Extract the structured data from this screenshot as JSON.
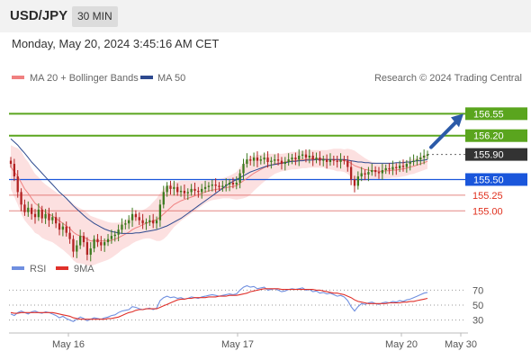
{
  "header": {
    "pair": "USD/JPY",
    "timeframe": "30 MIN",
    "datetime": "Monday, May 20, 2024 3:45:16 AM CET"
  },
  "legend": {
    "ma20_label": "MA 20 + Bollinger Bands",
    "ma50_label": "MA 50",
    "copyright": "Research © 2024 Trading Central",
    "rsi_label": "RSI",
    "rsi_ma_label": "9MA"
  },
  "colors": {
    "green_level": "#5aa51e",
    "blue_level": "#1a56db",
    "red_level": "#d9534f",
    "current": "#333333",
    "ma20": "#f08080",
    "ma50": "#2e4a8f",
    "band_fill": "#fbd5d5",
    "candle_up": "#3c7a1e",
    "candle_down": "#b22222",
    "rsi_line": "#6f8fe0",
    "rsi_ma_line": "#e0302a",
    "arrow": "#2b5aa8"
  },
  "chart_data": [
    {
      "type": "candlestick",
      "title": "USD/JPY 30 MIN",
      "x_ticks": [
        "May 16",
        "May 17",
        "May 20",
        "May 30"
      ],
      "y_range": [
        154.2,
        157.0
      ],
      "levels": [
        {
          "value": 156.55,
          "label": "156.55",
          "kind": "resistance",
          "color": "#5aa51e"
        },
        {
          "value": 156.2,
          "label": "156.20",
          "kind": "resistance",
          "color": "#5aa51e"
        },
        {
          "value": 155.9,
          "label": "155.90",
          "kind": "current",
          "color": "#333333"
        },
        {
          "value": 155.5,
          "label": "155.50",
          "kind": "pivot",
          "color": "#1a56db"
        },
        {
          "value": 155.25,
          "label": "155.25",
          "kind": "support",
          "color": "#d9534f"
        },
        {
          "value": 155.0,
          "label": "155.00",
          "kind": "support",
          "color": "#d9534f"
        }
      ],
      "close": [
        155.75,
        155.55,
        155.3,
        155.1,
        154.98,
        155.05,
        154.95,
        154.9,
        155.02,
        154.88,
        154.95,
        154.85,
        154.9,
        154.8,
        154.7,
        154.75,
        154.65,
        154.55,
        154.35,
        154.45,
        154.6,
        154.5,
        154.3,
        154.4,
        154.55,
        154.5,
        154.45,
        154.5,
        154.55,
        154.6,
        154.62,
        154.7,
        154.78,
        154.8,
        154.85,
        154.95,
        154.9,
        154.85,
        154.8,
        154.82,
        154.85,
        154.8,
        154.85,
        155.1,
        155.3,
        155.4,
        155.35,
        155.38,
        155.3,
        155.32,
        155.28,
        155.3,
        155.35,
        155.32,
        155.3,
        155.35,
        155.38,
        155.4,
        155.42,
        155.4,
        155.38,
        155.4,
        155.42,
        155.45,
        155.42,
        155.45,
        155.6,
        155.75,
        155.82,
        155.8,
        155.85,
        155.8,
        155.82,
        155.85,
        155.78,
        155.8,
        155.82,
        155.8,
        155.75,
        155.78,
        155.82,
        155.85,
        155.82,
        155.88,
        155.9,
        155.85,
        155.88,
        155.82,
        155.85,
        155.8,
        155.82,
        155.78,
        155.82,
        155.8,
        155.78,
        155.82,
        155.8,
        155.7,
        155.5,
        155.4,
        155.55,
        155.6,
        155.58,
        155.62,
        155.65,
        155.62,
        155.6,
        155.65,
        155.68,
        155.66,
        155.7,
        155.68,
        155.72,
        155.7,
        155.75,
        155.78,
        155.8,
        155.82,
        155.85,
        155.88,
        155.9
      ],
      "ma20": [
        155.7,
        155.62,
        155.55,
        155.45,
        155.35,
        155.28,
        155.2,
        155.12,
        155.08,
        155.02,
        154.98,
        154.95,
        154.92,
        154.88,
        154.84,
        154.8,
        154.76,
        154.72,
        154.66,
        154.62,
        154.6,
        154.58,
        154.55,
        154.52,
        154.52,
        154.52,
        154.52,
        154.52,
        154.52,
        154.53,
        154.55,
        154.57,
        154.6,
        154.63,
        154.66,
        154.7,
        154.73,
        154.75,
        154.78,
        154.8,
        154.82,
        154.84,
        154.86,
        154.9,
        154.95,
        155.0,
        155.05,
        155.1,
        155.13,
        155.16,
        155.18,
        155.2,
        155.22,
        155.24,
        155.26,
        155.28,
        155.3,
        155.32,
        155.33,
        155.34,
        155.35,
        155.36,
        155.37,
        155.38,
        155.39,
        155.4,
        155.44,
        155.48,
        155.52,
        155.56,
        155.6,
        155.63,
        155.66,
        155.69,
        155.71,
        155.73,
        155.75,
        155.76,
        155.77,
        155.78,
        155.79,
        155.8,
        155.8,
        155.81,
        155.82,
        155.82,
        155.83,
        155.83,
        155.83,
        155.83,
        155.83,
        155.82,
        155.82,
        155.82,
        155.81,
        155.81,
        155.8,
        155.79,
        155.76,
        155.72,
        155.7,
        155.68,
        155.66,
        155.65,
        155.64,
        155.64,
        155.63,
        155.63,
        155.64,
        155.64,
        155.65,
        155.65,
        155.66,
        155.67,
        155.68,
        155.7,
        155.71,
        155.73,
        155.75,
        155.77,
        155.79
      ],
      "ma50": [
        156.15,
        156.1,
        156.05,
        155.98,
        155.92,
        155.85,
        155.78,
        155.72,
        155.66,
        155.6,
        155.54,
        155.48,
        155.42,
        155.36,
        155.3,
        155.25,
        155.2,
        155.14,
        155.08,
        155.03,
        154.98,
        154.93,
        154.88,
        154.84,
        154.8,
        154.77,
        154.74,
        154.71,
        154.69,
        154.67,
        154.66,
        154.65,
        154.64,
        154.64,
        154.64,
        154.64,
        154.65,
        154.65,
        154.66,
        154.67,
        154.68,
        154.69,
        154.7,
        154.72,
        154.74,
        154.76,
        154.79,
        154.82,
        154.85,
        154.88,
        154.92,
        154.96,
        155.0,
        155.04,
        155.08,
        155.12,
        155.16,
        155.2,
        155.24,
        155.28,
        155.32,
        155.36,
        155.4,
        155.44,
        155.47,
        155.5,
        155.53,
        155.56,
        155.59,
        155.62,
        155.64,
        155.66,
        155.68,
        155.7,
        155.72,
        155.73,
        155.74,
        155.75,
        155.76,
        155.77,
        155.78,
        155.79,
        155.79,
        155.8,
        155.8,
        155.81,
        155.81,
        155.81,
        155.82,
        155.82,
        155.82,
        155.82,
        155.82,
        155.82,
        155.82,
        155.82,
        155.82,
        155.81,
        155.8,
        155.79,
        155.78,
        155.78,
        155.77,
        155.77,
        155.76,
        155.76,
        155.76,
        155.76,
        155.76,
        155.76,
        155.76,
        155.77,
        155.77,
        155.77,
        155.78,
        155.78,
        155.79,
        155.8,
        155.8,
        155.81,
        155.82
      ],
      "band_width": [
        0.35,
        0.4,
        0.45,
        0.5,
        0.5,
        0.5,
        0.48,
        0.47,
        0.46,
        0.45,
        0.44,
        0.43,
        0.42,
        0.42,
        0.42,
        0.42,
        0.43,
        0.44,
        0.45,
        0.45,
        0.44,
        0.43,
        0.42,
        0.4,
        0.38,
        0.36,
        0.34,
        0.32,
        0.3,
        0.28,
        0.26,
        0.24,
        0.22,
        0.22,
        0.22,
        0.22,
        0.22,
        0.22,
        0.23,
        0.24,
        0.26,
        0.3,
        0.34,
        0.38,
        0.4,
        0.4,
        0.38,
        0.36,
        0.34,
        0.32,
        0.3,
        0.28,
        0.26,
        0.24,
        0.22,
        0.2,
        0.18,
        0.17,
        0.16,
        0.16,
        0.16,
        0.16,
        0.17,
        0.18,
        0.2,
        0.22,
        0.25,
        0.28,
        0.3,
        0.3,
        0.28,
        0.26,
        0.24,
        0.22,
        0.2,
        0.18,
        0.16,
        0.15,
        0.14,
        0.14,
        0.14,
        0.14,
        0.14,
        0.14,
        0.14,
        0.14,
        0.14,
        0.14,
        0.14,
        0.14,
        0.14,
        0.15,
        0.16,
        0.17,
        0.18,
        0.18,
        0.18,
        0.2,
        0.22,
        0.24,
        0.22,
        0.2,
        0.18,
        0.16,
        0.14,
        0.13,
        0.12,
        0.12,
        0.12,
        0.12,
        0.12,
        0.12,
        0.12,
        0.12,
        0.12,
        0.12,
        0.12,
        0.12,
        0.12,
        0.12,
        0.12
      ]
    },
    {
      "type": "line",
      "title": "RSI",
      "y_ticks": [
        30,
        50,
        70
      ],
      "y_range": [
        15,
        85
      ],
      "series": [
        {
          "name": "RSI",
          "color": "#6f8fe0",
          "values": [
            38,
            36,
            40,
            42,
            40,
            38,
            41,
            42,
            40,
            39,
            41,
            40,
            38,
            36,
            33,
            35,
            32,
            30,
            28,
            31,
            34,
            32,
            29,
            31,
            33,
            32,
            31,
            33,
            34,
            36,
            37,
            40,
            42,
            43,
            44,
            48,
            47,
            45,
            44,
            45,
            46,
            44,
            46,
            56,
            60,
            62,
            60,
            61,
            59,
            60,
            58,
            59,
            61,
            60,
            59,
            61,
            62,
            63,
            64,
            63,
            62,
            63,
            64,
            65,
            64,
            65,
            70,
            74,
            76,
            74,
            75,
            72,
            73,
            74,
            70,
            71,
            72,
            70,
            68,
            69,
            71,
            72,
            71,
            72,
            73,
            70,
            71,
            68,
            69,
            66,
            67,
            65,
            66,
            64,
            62,
            63,
            61,
            56,
            48,
            42,
            48,
            52,
            51,
            53,
            54,
            52,
            51,
            53,
            54,
            53,
            55,
            54,
            56,
            55,
            57,
            58,
            60,
            62,
            64,
            66,
            67
          ]
        },
        {
          "name": "9MA",
          "color": "#e0302a",
          "values": [
            40,
            39,
            39,
            40,
            40,
            40,
            40,
            40,
            40,
            40,
            40,
            40,
            40,
            39,
            38,
            37,
            36,
            35,
            33,
            32,
            31,
            31,
            31,
            31,
            31,
            31,
            31,
            31,
            32,
            32,
            33,
            34,
            36,
            38,
            40,
            41,
            43,
            44,
            44,
            45,
            45,
            45,
            45,
            47,
            49,
            51,
            53,
            55,
            57,
            58,
            58,
            59,
            59,
            60,
            60,
            60,
            60,
            61,
            61,
            61,
            62,
            62,
            62,
            63,
            63,
            63,
            64,
            65,
            66,
            68,
            69,
            70,
            71,
            72,
            72,
            72,
            72,
            72,
            71,
            71,
            71,
            71,
            71,
            71,
            71,
            71,
            71,
            71,
            70,
            70,
            69,
            68,
            67,
            66,
            66,
            65,
            64,
            62,
            60,
            57,
            55,
            54,
            53,
            52,
            52,
            52,
            52,
            52,
            52,
            53,
            53,
            53,
            53,
            54,
            54,
            55,
            55,
            56,
            57,
            58,
            59
          ]
        }
      ]
    }
  ]
}
